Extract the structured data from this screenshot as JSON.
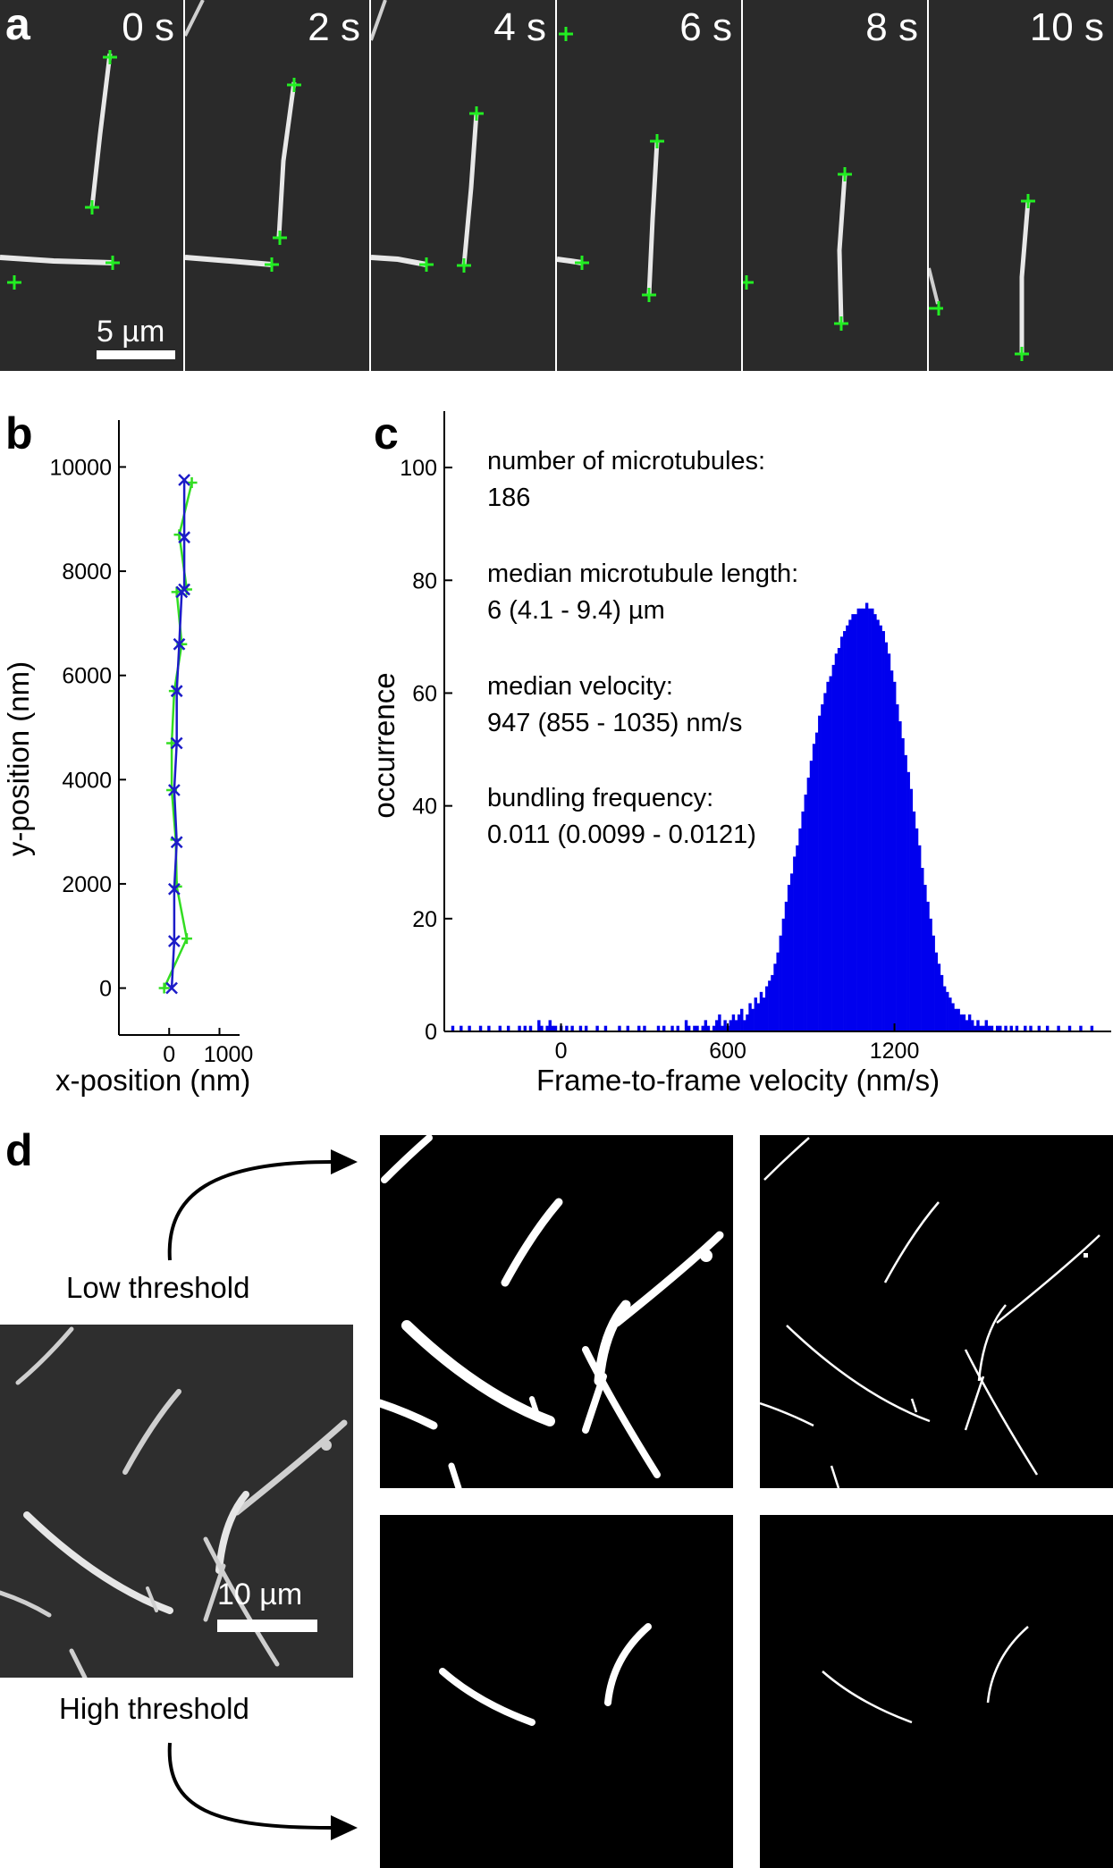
{
  "panel_a": {
    "letter": "a",
    "frames": [
      "0 s",
      "2 s",
      "4 s",
      "6 s",
      "8 s",
      "10 s"
    ],
    "scale_bar": "5 µm"
  },
  "panel_b": {
    "letter": "b",
    "xlabel": "x-position (nm)",
    "ylabel": "y-position (nm)"
  },
  "panel_c": {
    "letter": "c",
    "stats": [
      "number of microtubules:",
      "186",
      "median microtubule length:",
      "6 (4.1 - 9.4) µm",
      "median velocity:",
      "947 (855 - 1035) nm/s",
      "bundling frequency:",
      "0.011 (0.0099 - 0.0121)"
    ]
  },
  "panel_d": {
    "letter": "d",
    "low_label": "Low threshold",
    "high_label": "High threshold",
    "scale_bar": "10 µm"
  },
  "chart_data": [
    {
      "type": "line",
      "panel": "b",
      "xlabel": "x-position (nm)",
      "ylabel": "y-position (nm)",
      "xlim": [
        -1000,
        1400
      ],
      "ylim": [
        -900,
        10900
      ],
      "xticks": [
        0,
        1000
      ],
      "yticks": [
        0,
        2000,
        4000,
        6000,
        8000,
        10000
      ],
      "colors": {
        "green": "#33dd22",
        "blue": "#1c1cc8"
      },
      "series": [
        {
          "marker": "+",
          "color": "#33dd22",
          "x": [
            -100,
            350,
            150,
            130,
            50,
            50,
            100,
            250,
            150,
            350,
            200,
            450
          ],
          "y": [
            0,
            950,
            1950,
            2850,
            3800,
            4700,
            5700,
            6600,
            7600,
            7650,
            8700,
            9700
          ]
        },
        {
          "marker": "x",
          "color": "#1c1cc8",
          "x": [
            50,
            100,
            100,
            150,
            100,
            150,
            150,
            200,
            250,
            300,
            300,
            300
          ],
          "y": [
            0,
            900,
            1900,
            2800,
            3800,
            4700,
            5700,
            6600,
            7600,
            7650,
            8650,
            9750
          ]
        }
      ]
    },
    {
      "type": "bar",
      "panel": "c",
      "xlabel": "Frame-to-frame velocity (nm/s)",
      "ylabel": "occurrence",
      "xlim": [
        -420,
        1980
      ],
      "ylim": [
        0,
        110
      ],
      "xticks": [
        0,
        600,
        1200
      ],
      "yticks": [
        0,
        20,
        40,
        60,
        80,
        100
      ],
      "bar_color": "#0000ee",
      "bin_width": 10,
      "bin_centers": [
        -400,
        -390,
        -380,
        -370,
        -360,
        -350,
        -340,
        -330,
        -320,
        -310,
        -300,
        -290,
        -280,
        -270,
        -260,
        -250,
        -240,
        -230,
        -220,
        -210,
        -200,
        -190,
        -180,
        -170,
        -160,
        -150,
        -140,
        -130,
        -120,
        -110,
        -100,
        -90,
        -80,
        -70,
        -60,
        -50,
        -40,
        -30,
        -20,
        -10,
        0,
        10,
        20,
        30,
        40,
        50,
        60,
        70,
        80,
        90,
        100,
        110,
        120,
        130,
        140,
        150,
        160,
        170,
        180,
        190,
        200,
        210,
        220,
        230,
        240,
        250,
        260,
        270,
        280,
        290,
        300,
        310,
        320,
        330,
        340,
        350,
        360,
        370,
        380,
        390,
        400,
        410,
        420,
        430,
        440,
        450,
        460,
        470,
        480,
        490,
        500,
        510,
        520,
        530,
        540,
        550,
        560,
        570,
        580,
        590,
        600,
        610,
        620,
        630,
        640,
        650,
        660,
        670,
        680,
        690,
        700,
        710,
        720,
        730,
        740,
        750,
        760,
        770,
        780,
        790,
        800,
        810,
        820,
        830,
        840,
        850,
        860,
        870,
        880,
        890,
        900,
        910,
        920,
        930,
        940,
        950,
        960,
        970,
        980,
        990,
        1000,
        1010,
        1020,
        1030,
        1040,
        1050,
        1060,
        1070,
        1080,
        1090,
        1100,
        1110,
        1120,
        1130,
        1140,
        1150,
        1160,
        1170,
        1180,
        1190,
        1200,
        1210,
        1220,
        1230,
        1240,
        1250,
        1260,
        1270,
        1280,
        1290,
        1300,
        1310,
        1320,
        1330,
        1340,
        1350,
        1360,
        1370,
        1380,
        1390,
        1400,
        1410,
        1420,
        1430,
        1440,
        1450,
        1460,
        1470,
        1480,
        1490,
        1500,
        1510,
        1520,
        1530,
        1540,
        1550,
        1560,
        1570,
        1580,
        1590,
        1600,
        1610,
        1620,
        1630,
        1640,
        1650,
        1660,
        1670,
        1680,
        1690,
        1700,
        1710,
        1720,
        1730,
        1740,
        1750,
        1760,
        1770,
        1780,
        1790,
        1800,
        1810,
        1820,
        1830,
        1840,
        1850,
        1860,
        1870,
        1880,
        1890,
        1900,
        1910,
        1920,
        1930,
        1940,
        1950,
        1960,
        1970
      ],
      "values": [
        0,
        1,
        0,
        0,
        1,
        0,
        0,
        1,
        0,
        0,
        0,
        1,
        0,
        0,
        1,
        0,
        0,
        0,
        1,
        0,
        0,
        1,
        0,
        0,
        0,
        1,
        0,
        1,
        0,
        1,
        0,
        0,
        2,
        1,
        0,
        1,
        2,
        1,
        1,
        0,
        1,
        0,
        1,
        0,
        1,
        0,
        0,
        1,
        0,
        1,
        0,
        0,
        0,
        1,
        0,
        0,
        1,
        0,
        0,
        0,
        0,
        1,
        0,
        0,
        1,
        0,
        0,
        0,
        1,
        0,
        1,
        0,
        0,
        0,
        0,
        1,
        0,
        1,
        0,
        0,
        1,
        0,
        1,
        0,
        0,
        2,
        1,
        0,
        1,
        1,
        0,
        1,
        2,
        1,
        0,
        1,
        2,
        3,
        1,
        2,
        1,
        2,
        3,
        2,
        3,
        4,
        2,
        3,
        5,
        4,
        6,
        5,
        7,
        6,
        8,
        9,
        10,
        12,
        14,
        17,
        20,
        23,
        26,
        28,
        31,
        33,
        36,
        39,
        42,
        45,
        48,
        51,
        53,
        56,
        58,
        60,
        62,
        63,
        65,
        67,
        68,
        70,
        71,
        72,
        73,
        74,
        74,
        75,
        75,
        75,
        76,
        75,
        75,
        74,
        73,
        72,
        71,
        69,
        67,
        64,
        62,
        58,
        55,
        52,
        49,
        46,
        43,
        39,
        36,
        33,
        29,
        26,
        23,
        20,
        17,
        14,
        12,
        10,
        8,
        7,
        6,
        5,
        4,
        4,
        3,
        3,
        2,
        3,
        2,
        1,
        2,
        1,
        1,
        2,
        1,
        1,
        0,
        1,
        1,
        0,
        1,
        0,
        1,
        0,
        1,
        0,
        0,
        1,
        0,
        1,
        0,
        0,
        1,
        0,
        0,
        1,
        0,
        0,
        0,
        1,
        0,
        0,
        0,
        1,
        0,
        0,
        0,
        1,
        0,
        0,
        0,
        1,
        0,
        0,
        0,
        0
      ]
    }
  ]
}
